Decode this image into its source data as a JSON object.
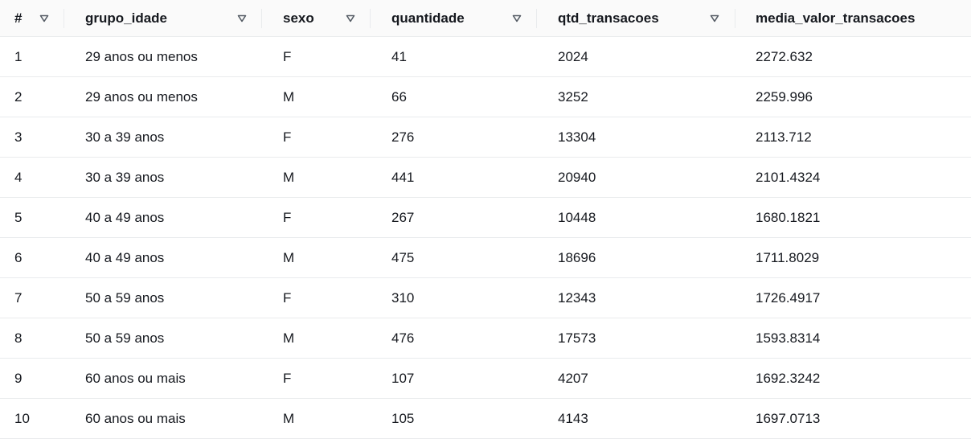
{
  "table": {
    "headers": [
      "#",
      "grupo_idade",
      "sexo",
      "quantidade",
      "qtd_transacoes",
      "media_valor_transacoes"
    ],
    "rows": [
      [
        "1",
        "29 anos ou menos",
        "F",
        "41",
        "2024",
        "2272.632"
      ],
      [
        "2",
        "29 anos ou menos",
        "M",
        "66",
        "3252",
        "2259.996"
      ],
      [
        "3",
        "30 a 39 anos",
        "F",
        "276",
        "13304",
        "2113.712"
      ],
      [
        "4",
        "30 a 39 anos",
        "M",
        "441",
        "20940",
        "2101.4324"
      ],
      [
        "5",
        "40 a 49 anos",
        "F",
        "267",
        "10448",
        "1680.1821"
      ],
      [
        "6",
        "40 a 49 anos",
        "M",
        "475",
        "18696",
        "1711.8029"
      ],
      [
        "7",
        "50 a 59 anos",
        "F",
        "310",
        "12343",
        "1726.4917"
      ],
      [
        "8",
        "50 a 59 anos",
        "M",
        "476",
        "17573",
        "1593.8314"
      ],
      [
        "9",
        "60 anos ou mais",
        "F",
        "107",
        "4207",
        "1692.3242"
      ],
      [
        "10",
        "60 anos ou mais",
        "M",
        "105",
        "4143",
        "1697.0713"
      ]
    ]
  },
  "icons": {
    "sort": "sort-triangle-icon"
  },
  "colors": {
    "text": "#16191f",
    "header_bg": "#fafafa",
    "divider": "#e9ebed",
    "icon": "#545b64"
  }
}
